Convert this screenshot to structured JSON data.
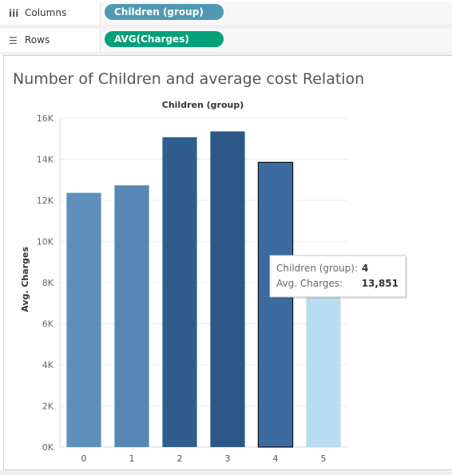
{
  "shelves": {
    "columns": {
      "icon": "columns-icon",
      "glyph": "iii",
      "label": "Columns",
      "pill": "Children (group)",
      "pill_color": "#4f99b2"
    },
    "rows": {
      "icon": "rows-icon",
      "glyph": "☰",
      "label": "Rows",
      "pill": "AVG(Charges)",
      "pill_color": "#04a07a"
    }
  },
  "chart_data": {
    "type": "bar",
    "title": "Number of Children and average cost Relation",
    "xlabel": "Children (group)",
    "ylabel": "Avg. Charges",
    "categories": [
      "0",
      "1",
      "2",
      "3",
      "4",
      "5"
    ],
    "values": [
      12366,
      12731,
      15074,
      15356,
      13851,
      8786
    ],
    "colors": [
      "#5f8fbb",
      "#5687b5",
      "#2f5e8e",
      "#2c5887",
      "#3b6a9e",
      "#b9dcf0"
    ],
    "ylim": [
      0,
      16000
    ],
    "yticks": [
      0,
      2000,
      4000,
      6000,
      8000,
      10000,
      12000,
      14000,
      16000
    ],
    "ytick_labels": [
      "0K",
      "2K",
      "4K",
      "6K",
      "8K",
      "10K",
      "12K",
      "14K",
      "16K"
    ],
    "grid": true,
    "highlighted_index": 4,
    "tooltip": {
      "line1_label": "Children (group):",
      "line1_value": "4",
      "line2_label": "Avg. Charges:",
      "line2_value": "13,851"
    }
  }
}
